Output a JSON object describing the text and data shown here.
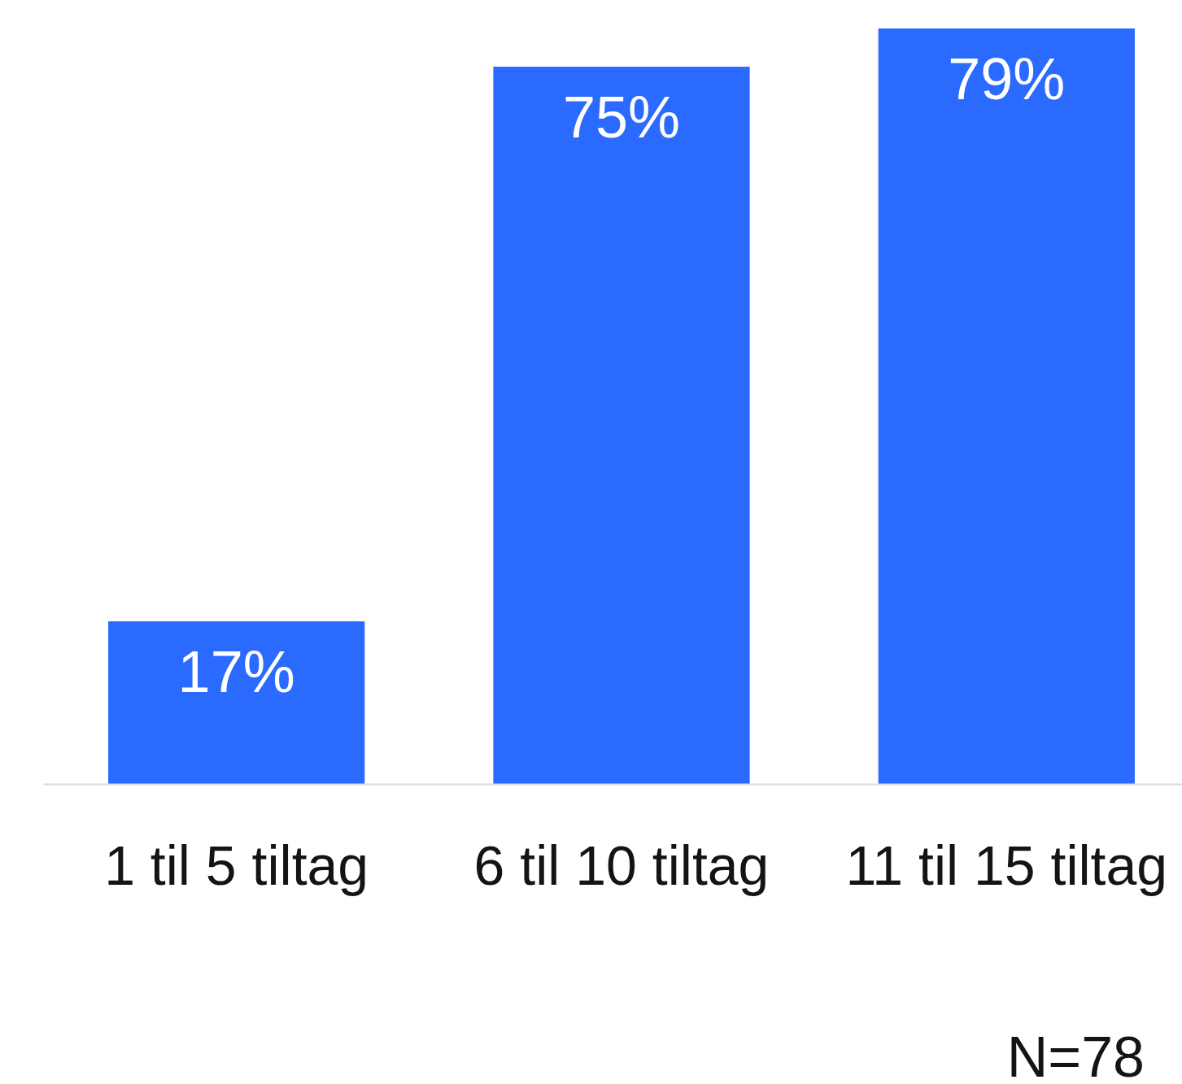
{
  "chart_data": {
    "type": "bar",
    "categories": [
      "1 til 5 tiltag",
      "6 til 10 tiltag",
      "11 til 15 tiltag"
    ],
    "values": [
      17,
      75,
      79
    ],
    "color": "#2b6aff",
    "value_labels": [
      "17%",
      "75%",
      "79%"
    ],
    "annotations": [
      "N=78"
    ]
  }
}
